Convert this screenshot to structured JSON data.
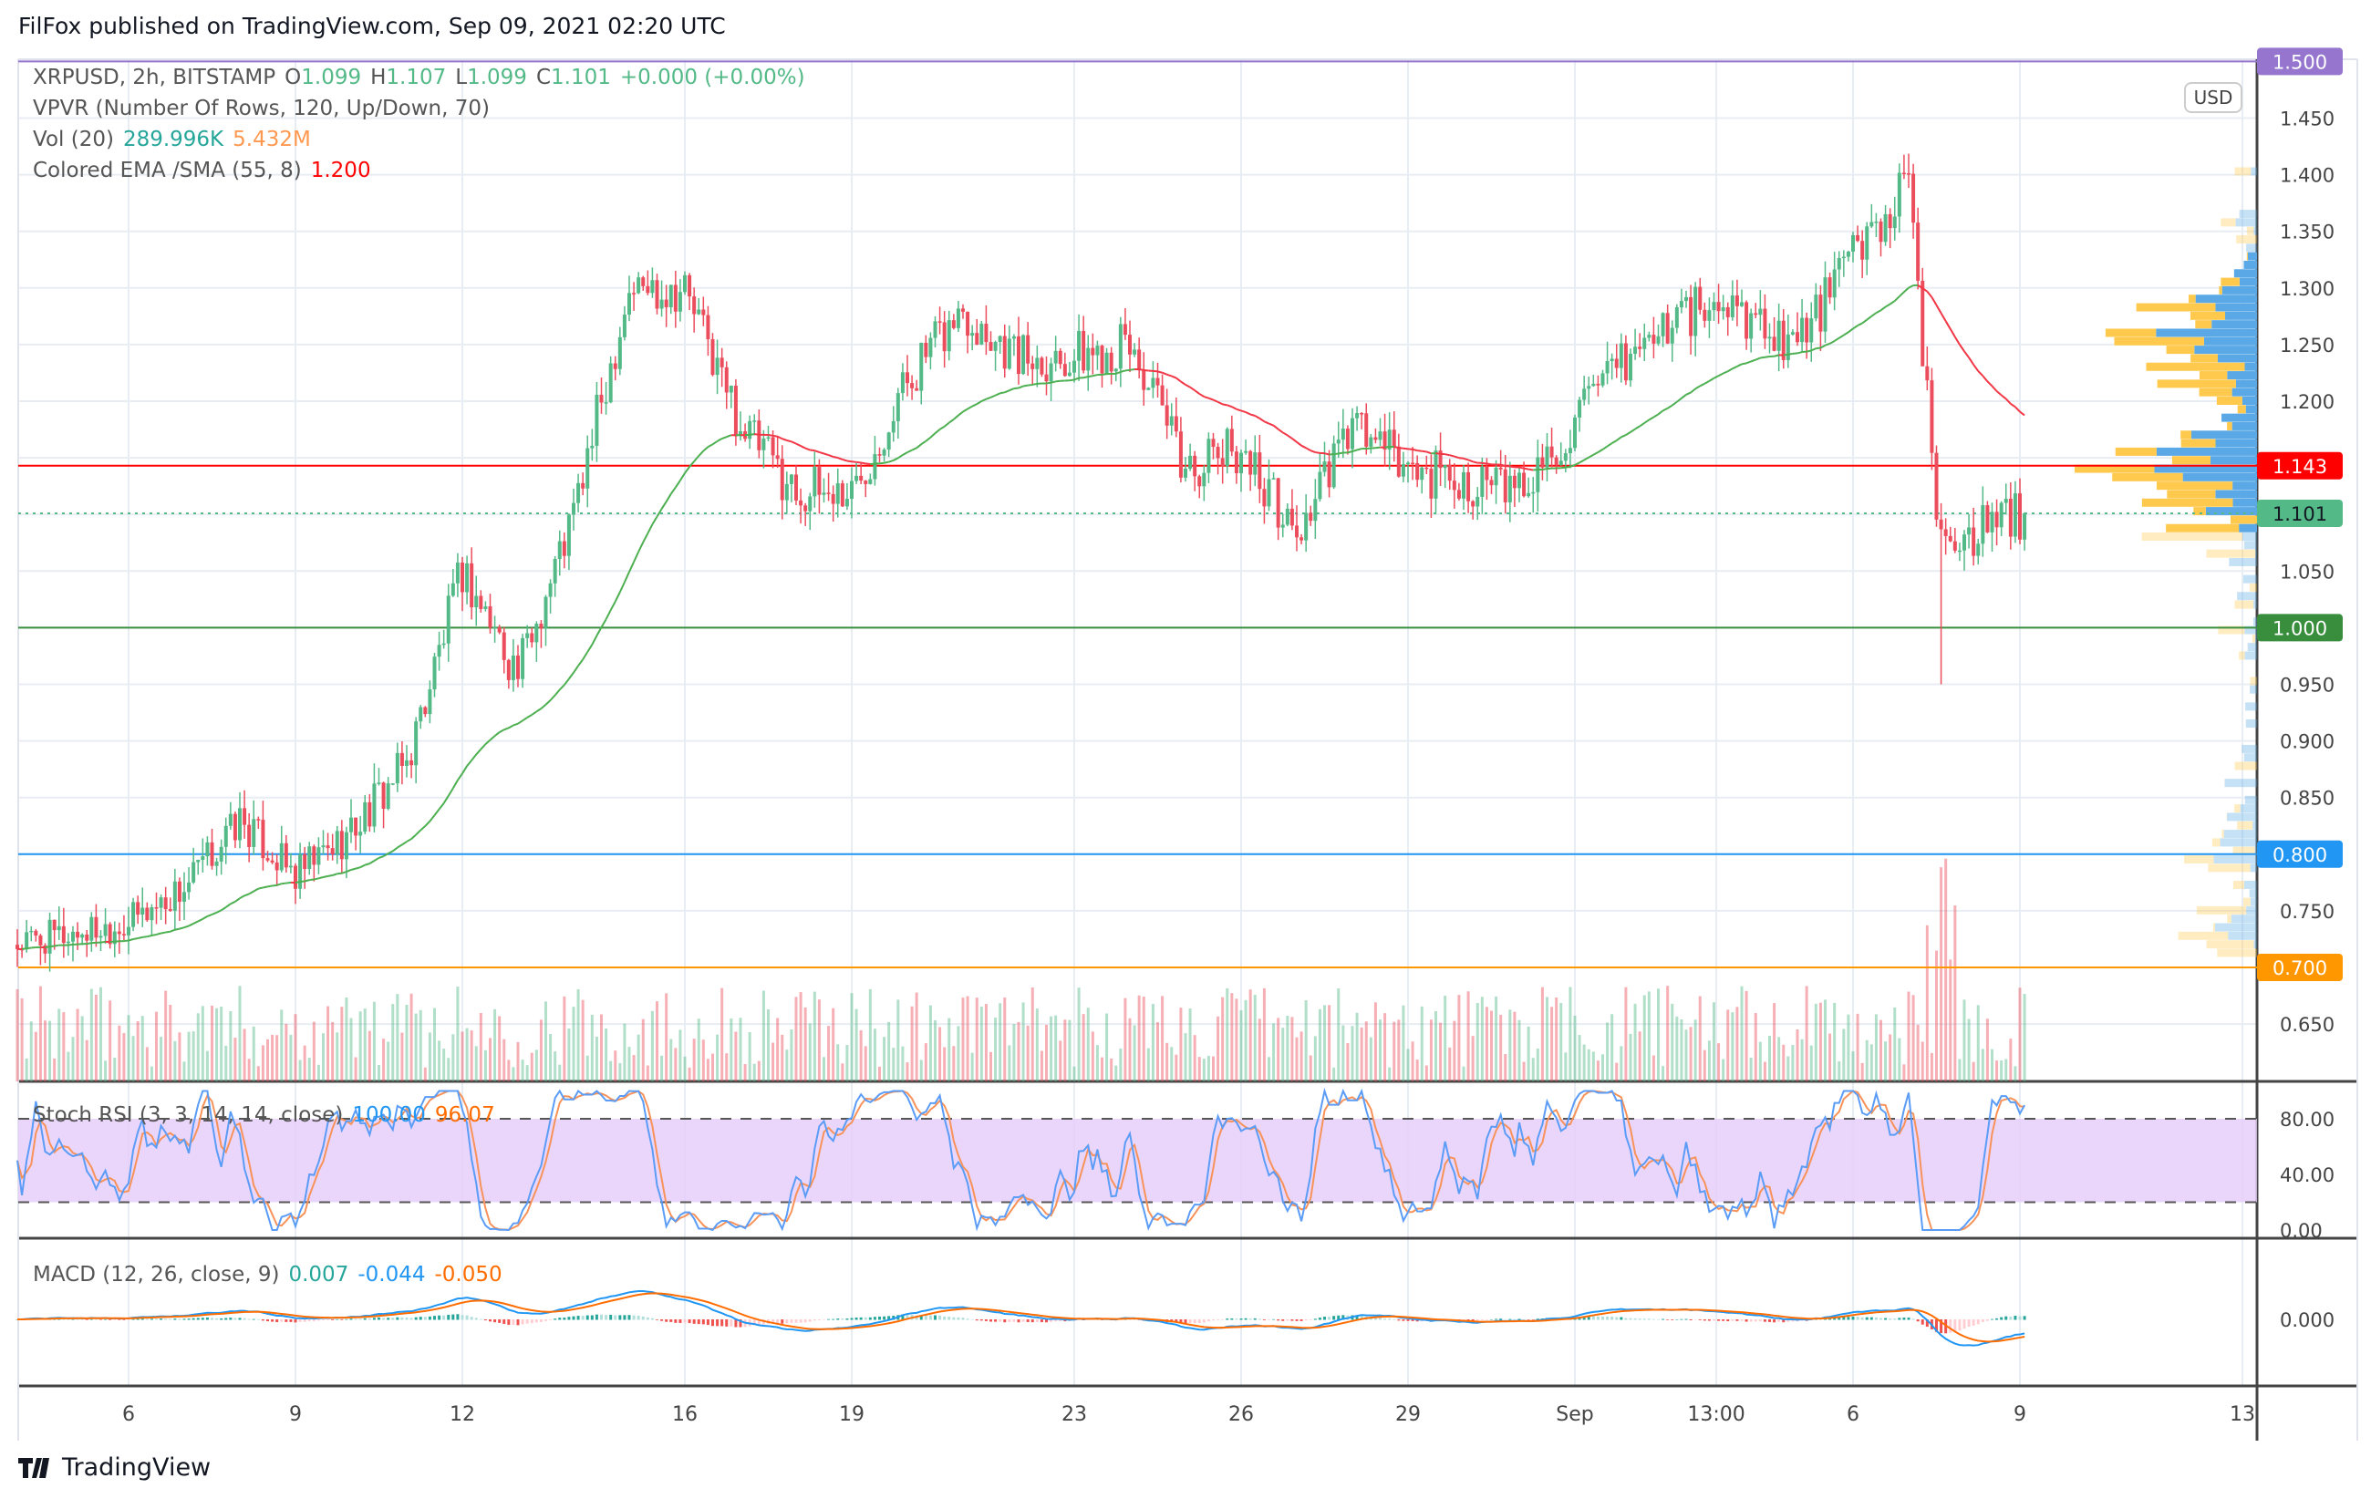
{
  "header": {
    "title": "FilFox published on TradingView.com, Sep 09, 2021 02:20 UTC"
  },
  "legend": {
    "symbol": "XRPUSD, 2h, BITSTAMP",
    "o_label": "O",
    "o": "1.099",
    "h_label": "H",
    "h": "1.107",
    "l_label": "L",
    "l": "1.099",
    "c_label": "C",
    "c": "1.101",
    "change": "+0.000 (+0.00%)",
    "vpvr": "VPVR (Number Of Rows, 120, Up/Down, 70)",
    "vol": "Vol (20)",
    "vol_v1": "289.996K",
    "vol_v2": "5.432M",
    "ema": "Colored EMA /SMA (55, 8)",
    "ema_v": "1.200",
    "stoch": "Stoch RSI (3, 3, 14, 14, close)",
    "stoch_k": "100.00",
    "stoch_d": "96.07",
    "macd": "MACD (12, 26, close, 9)",
    "macd_hist": "0.007",
    "macd_line": "-0.044",
    "macd_signal": "-0.050"
  },
  "currency": "USD",
  "brand": "TradingView",
  "colors": {
    "up": "#53b987",
    "down": "#eb4d5c",
    "ema_up": "#4caf50",
    "ema_down": "#f23645",
    "vpvr_up": "#5aa9e6",
    "vpvr_down": "#ffc94d",
    "stoch_k": "#5b9cf6",
    "stoch_d": "#f7935a",
    "band": "#e6ccfa",
    "macd": "#2196f3",
    "signal": "#ff6d00"
  },
  "chart_data": {
    "type": "candlestick",
    "symbol": "XRPUSD",
    "interval": "2h",
    "ylim": [
      0.62,
      1.52
    ],
    "price_ticks": [
      "1.450",
      "1.400",
      "1.350",
      "1.300",
      "1.250",
      "1.200",
      "1.050",
      "0.950",
      "0.900",
      "0.850",
      "0.750",
      "0.650"
    ],
    "levels": [
      {
        "price": 1.5,
        "label": "1.500",
        "color": "#9575cd"
      },
      {
        "price": 1.143,
        "label": "1.143",
        "color": "#ff0000"
      },
      {
        "price": 1.101,
        "label": "1.101",
        "color": "#53b987",
        "dotted": true
      },
      {
        "price": 1.0,
        "label": "1.000",
        "color": "#388e3c"
      },
      {
        "price": 0.8,
        "label": "0.800",
        "color": "#2196f3"
      },
      {
        "price": 0.7,
        "label": "0.700",
        "color": "#ff9800"
      }
    ],
    "close_path": {
      "dates": [
        "2021-08-04",
        "2021-08-05",
        "2021-08-06",
        "2021-08-07",
        "2021-08-08",
        "2021-08-09",
        "2021-08-10",
        "2021-08-11",
        "2021-08-12",
        "2021-08-13",
        "2021-08-14",
        "2021-08-15",
        "2021-08-16",
        "2021-08-17",
        "2021-08-18",
        "2021-08-19",
        "2021-08-20",
        "2021-08-21",
        "2021-08-22",
        "2021-08-23",
        "2021-08-24",
        "2021-08-25",
        "2021-08-26",
        "2021-08-27",
        "2021-08-28",
        "2021-08-29",
        "2021-08-30",
        "2021-08-31",
        "2021-09-01",
        "2021-09-02",
        "2021-09-03",
        "2021-09-04",
        "2021-09-05",
        "2021-09-06",
        "2021-09-07",
        "2021-09-07 12:00",
        "2021-09-08",
        "2021-09-09 02:00"
      ],
      "close": [
        0.72,
        0.73,
        0.74,
        0.77,
        0.83,
        0.78,
        0.82,
        0.88,
        1.05,
        0.96,
        1.1,
        1.3,
        1.3,
        1.18,
        1.12,
        1.12,
        1.22,
        1.28,
        1.24,
        1.24,
        1.25,
        1.14,
        1.16,
        1.08,
        1.18,
        1.14,
        1.13,
        1.12,
        1.18,
        1.24,
        1.28,
        1.28,
        1.25,
        1.33,
        1.39,
        1.1,
        1.08,
        1.101
      ]
    },
    "time_ticks": [
      {
        "label": "6",
        "date": "2021-08-06"
      },
      {
        "label": "9",
        "date": "2021-08-09"
      },
      {
        "label": "12",
        "date": "2021-08-12"
      },
      {
        "label": "16",
        "date": "2021-08-16"
      },
      {
        "label": "19",
        "date": "2021-08-19"
      },
      {
        "label": "23",
        "date": "2021-08-23"
      },
      {
        "label": "26",
        "date": "2021-08-26"
      },
      {
        "label": "29",
        "date": "2021-08-29"
      },
      {
        "label": "Sep",
        "date": "2021-09-01"
      },
      {
        "label": "13:00",
        "date": "2021-09-03 13:00"
      },
      {
        "label": "6",
        "date": "2021-09-06"
      },
      {
        "label": "9",
        "date": "2021-09-09"
      },
      {
        "label": "13",
        "date": "2021-09-13"
      }
    ],
    "stoch_ticks": [
      "80.00",
      "40.00",
      "0.00"
    ],
    "stoch_bands": [
      20,
      80
    ],
    "macd_ticks": [
      "0.000"
    ]
  }
}
